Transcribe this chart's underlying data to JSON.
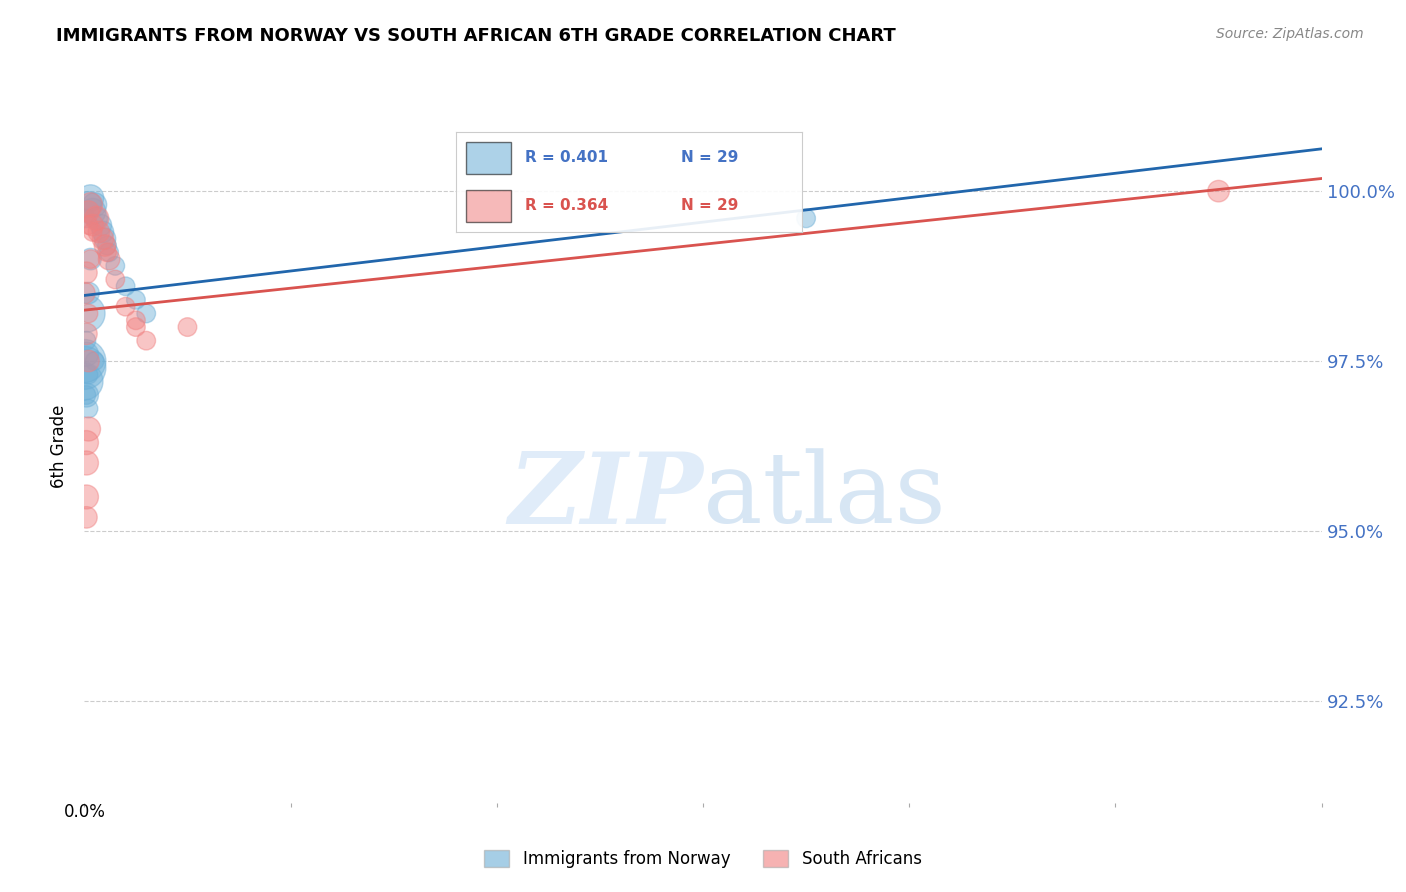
{
  "title": "IMMIGRANTS FROM NORWAY VS SOUTH AFRICAN 6TH GRADE CORRELATION CHART",
  "source": "Source: ZipAtlas.com",
  "ylabel": "6th Grade",
  "y_ticks": [
    92.5,
    95.0,
    97.5,
    100.0
  ],
  "y_labels": [
    "92.5%",
    "95.0%",
    "97.5%",
    "100.0%"
  ],
  "xlim": [
    0.0,
    0.6
  ],
  "ylim": [
    91.0,
    101.5
  ],
  "norway_color": "#6baed6",
  "sa_color": "#f08080",
  "trendline_norway_color": "#2166ac",
  "trendline_sa_color": "#d9534f",
  "norway_points": [
    [
      0.002,
      99.8
    ],
    [
      0.003,
      99.9
    ],
    [
      0.004,
      99.7
    ],
    [
      0.005,
      99.8
    ],
    [
      0.006,
      99.6
    ],
    [
      0.008,
      99.5
    ],
    [
      0.009,
      99.4
    ],
    [
      0.01,
      99.3
    ],
    [
      0.011,
      99.2
    ],
    [
      0.012,
      99.1
    ],
    [
      0.015,
      98.9
    ],
    [
      0.02,
      98.6
    ],
    [
      0.025,
      98.4
    ],
    [
      0.03,
      98.2
    ],
    [
      0.003,
      99.0
    ],
    [
      0.002,
      98.5
    ],
    [
      0.001,
      98.2
    ],
    [
      0.001,
      97.6
    ],
    [
      0.005,
      97.5
    ],
    [
      0.002,
      97.3
    ],
    [
      0.001,
      97.0
    ],
    [
      0.002,
      96.8
    ],
    [
      0.001,
      97.8
    ],
    [
      0.001,
      99.6
    ],
    [
      0.0,
      97.5
    ],
    [
      0.0,
      97.4
    ],
    [
      0.0,
      97.2
    ],
    [
      0.35,
      99.6
    ],
    [
      0.001,
      97.0
    ]
  ],
  "sa_points": [
    [
      0.002,
      99.7
    ],
    [
      0.003,
      99.8
    ],
    [
      0.004,
      99.5
    ],
    [
      0.006,
      99.6
    ],
    [
      0.007,
      99.4
    ],
    [
      0.009,
      99.3
    ],
    [
      0.01,
      99.2
    ],
    [
      0.011,
      99.1
    ],
    [
      0.012,
      99.0
    ],
    [
      0.015,
      98.7
    ],
    [
      0.02,
      98.3
    ],
    [
      0.025,
      98.0
    ],
    [
      0.03,
      97.8
    ],
    [
      0.001,
      98.8
    ],
    [
      0.001,
      97.9
    ],
    [
      0.002,
      97.5
    ],
    [
      0.002,
      96.5
    ],
    [
      0.025,
      98.1
    ],
    [
      0.001,
      96.3
    ],
    [
      0.001,
      96.0
    ],
    [
      0.001,
      95.5
    ],
    [
      0.001,
      95.2
    ],
    [
      0.003,
      99.0
    ],
    [
      0.05,
      98.0
    ],
    [
      0.55,
      100.0
    ],
    [
      0.0,
      98.5
    ],
    [
      0.002,
      99.5
    ],
    [
      0.004,
      99.4
    ],
    [
      0.002,
      98.2
    ]
  ],
  "norway_sizes": [
    30,
    30,
    30,
    25,
    20,
    20,
    20,
    20,
    15,
    15,
    15,
    15,
    15,
    15,
    20,
    20,
    60,
    25,
    15,
    15,
    25,
    15,
    15,
    15,
    80,
    80,
    60,
    15,
    15
  ],
  "sa_sizes": [
    20,
    25,
    20,
    25,
    20,
    20,
    20,
    15,
    20,
    15,
    15,
    15,
    15,
    20,
    20,
    20,
    25,
    15,
    25,
    25,
    25,
    20,
    15,
    15,
    20,
    20,
    15,
    15,
    15
  ]
}
